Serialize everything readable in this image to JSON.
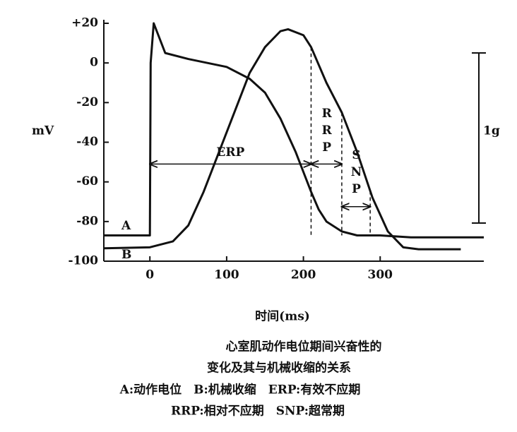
{
  "chart_data": {
    "type": "line",
    "title_lines": [
      "心室肌动作电位期间兴奋性的",
      "变化及其与机械收缩的关系"
    ],
    "notes": [
      "A:动作电位　B:机械收缩　ERP:有效不应期",
      "RRP:相对不应期　SNP:超常期"
    ],
    "ylabel": "mV",
    "xlabel": "时间(ms)",
    "scale_bar_label": "1g",
    "xlim": [
      -60,
      435
    ],
    "ylim": [
      -100,
      20
    ],
    "xticks": [
      0,
      100,
      200,
      300
    ],
    "yticks": [
      {
        "value": 20,
        "label": "+20"
      },
      0,
      -20,
      -40,
      -60,
      -80,
      -100
    ],
    "series": [
      {
        "name": "A",
        "color": "#111111",
        "x": [
          -60,
          0,
          1,
          5,
          20,
          50,
          100,
          130,
          150,
          170,
          190,
          200,
          210,
          220,
          230,
          250,
          270,
          300,
          340,
          435
        ],
        "values": [
          -87,
          -87,
          0,
          20,
          5,
          2,
          -2,
          -8,
          -15,
          -28,
          -45,
          -55,
          -65,
          -74,
          -80,
          -85,
          -87,
          -87,
          -88,
          -88
        ]
      },
      {
        "name": "B",
        "color": "#111111",
        "x": [
          -60,
          0,
          30,
          50,
          70,
          100,
          130,
          150,
          170,
          180,
          200,
          210,
          230,
          250,
          270,
          290,
          310,
          330,
          350,
          405
        ],
        "values": [
          -93.5,
          -93,
          -90,
          -82,
          -65,
          -35,
          -5,
          8,
          16,
          17,
          14,
          8,
          -10,
          -25,
          -45,
          -68,
          -85,
          -93,
          -94,
          -94
        ]
      }
    ],
    "intervals": [
      {
        "label": "ERP",
        "start": 0,
        "end": 210
      },
      {
        "label": "RRP",
        "start": 210,
        "end": 250
      },
      {
        "label": "SNP",
        "start": 250,
        "end": 287
      }
    ]
  }
}
